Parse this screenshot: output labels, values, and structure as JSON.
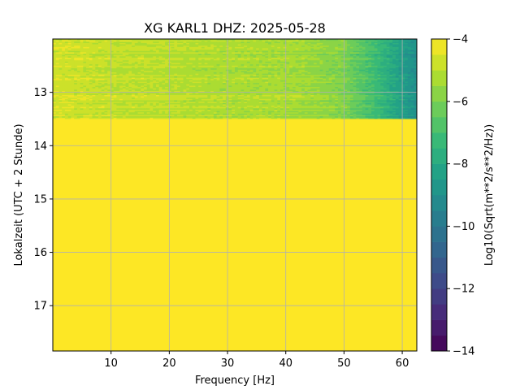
{
  "chart_data": {
    "type": "heatmap",
    "title": "XG KARL1  DHZ: 2025-05-28",
    "xlabel": "Frequency [Hz]",
    "ylabel": "Lokalzeit (UTC + 2 Stunde)",
    "colorbar_label": "Log10(Sqrt(m**2/s**2/Hz))",
    "x_range": [
      0,
      62.5
    ],
    "y_range": [
      12.0,
      17.85
    ],
    "x_ticks": [
      10,
      20,
      30,
      40,
      50,
      60
    ],
    "y_ticks": [
      13,
      14,
      15,
      16,
      17
    ],
    "colorbar_range": [
      -14,
      -4
    ],
    "colorbar_ticks": [
      -4,
      -6,
      -8,
      -10,
      -12,
      -14
    ],
    "colormap": "viridis",
    "grid": true,
    "data_end_time": 13.5,
    "fill_value": -4,
    "spectrum_profile": {
      "frequency_hz": [
        0,
        10,
        20,
        30,
        40,
        45,
        50,
        52,
        55,
        58,
        60,
        62.5
      ],
      "level": [
        -4.6,
        -4.9,
        -5.0,
        -5.2,
        -5.3,
        -5.5,
        -5.9,
        -6.4,
        -7.0,
        -7.8,
        -8.4,
        -9.0
      ]
    }
  }
}
